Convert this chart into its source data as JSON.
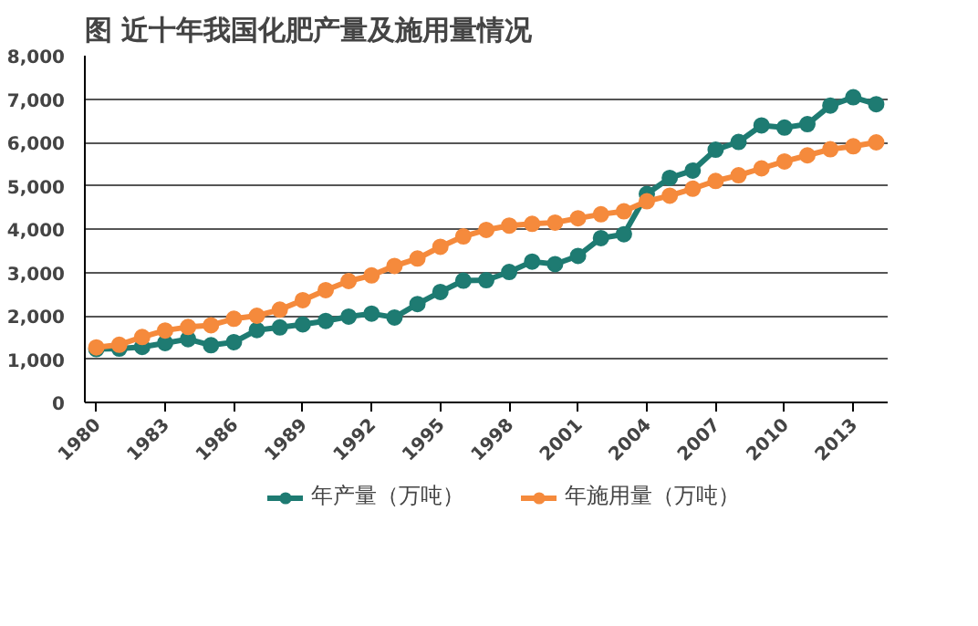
{
  "chart_data": {
    "type": "line",
    "title": "图   近十年我国化肥产量及施用量情况",
    "x": [
      1980,
      1981,
      1982,
      1983,
      1984,
      1985,
      1986,
      1987,
      1988,
      1989,
      1990,
      1991,
      1992,
      1993,
      1994,
      1995,
      1996,
      1997,
      1998,
      1999,
      2000,
      2001,
      2002,
      2003,
      2004,
      2005,
      2006,
      2007,
      2008,
      2009,
      2010,
      2011,
      2012,
      2013,
      2014
    ],
    "series": [
      {
        "name": "年产量（万吨）",
        "color": "#1e7b72",
        "values": [
          1230,
          1240,
          1280,
          1370,
          1460,
          1320,
          1390,
          1670,
          1730,
          1800,
          1880,
          1980,
          2050,
          1960,
          2270,
          2550,
          2810,
          2820,
          3010,
          3250,
          3190,
          3380,
          3790,
          3880,
          4810,
          5180,
          5350,
          5830,
          6010,
          6390,
          6340,
          6420,
          6850,
          7040,
          6880
        ]
      },
      {
        "name": "年施用量（万吨）",
        "color": "#f58a3c",
        "values": [
          1270,
          1330,
          1510,
          1660,
          1740,
          1780,
          1930,
          2000,
          2140,
          2360,
          2590,
          2800,
          2930,
          3150,
          3320,
          3590,
          3830,
          3980,
          4080,
          4120,
          4150,
          4250,
          4340,
          4410,
          4640,
          4770,
          4930,
          5110,
          5240,
          5400,
          5560,
          5700,
          5840,
          5910,
          6000
        ]
      }
    ],
    "xlim": [
      1979.5,
      2014.5
    ],
    "xticks": [
      1980,
      1983,
      1986,
      1989,
      1992,
      1995,
      1998,
      2001,
      2004,
      2007,
      2010,
      2013
    ],
    "ylim": [
      0,
      8000
    ],
    "yticks": [
      {
        "value": 0,
        "label": "0"
      },
      {
        "value": 1000,
        "label": "1,000"
      },
      {
        "value": 2000,
        "label": "2,000"
      },
      {
        "value": 3000,
        "label": "3,000"
      },
      {
        "value": 4000,
        "label": "4,000"
      },
      {
        "value": 5000,
        "label": "5,000"
      },
      {
        "value": 6000,
        "label": "6,000"
      },
      {
        "value": 7000,
        "label": "7,000"
      },
      {
        "value": 8000,
        "label": "8,000"
      }
    ],
    "grid": "y",
    "legend": "bottom",
    "marker": "circle",
    "line_style": "solid"
  }
}
